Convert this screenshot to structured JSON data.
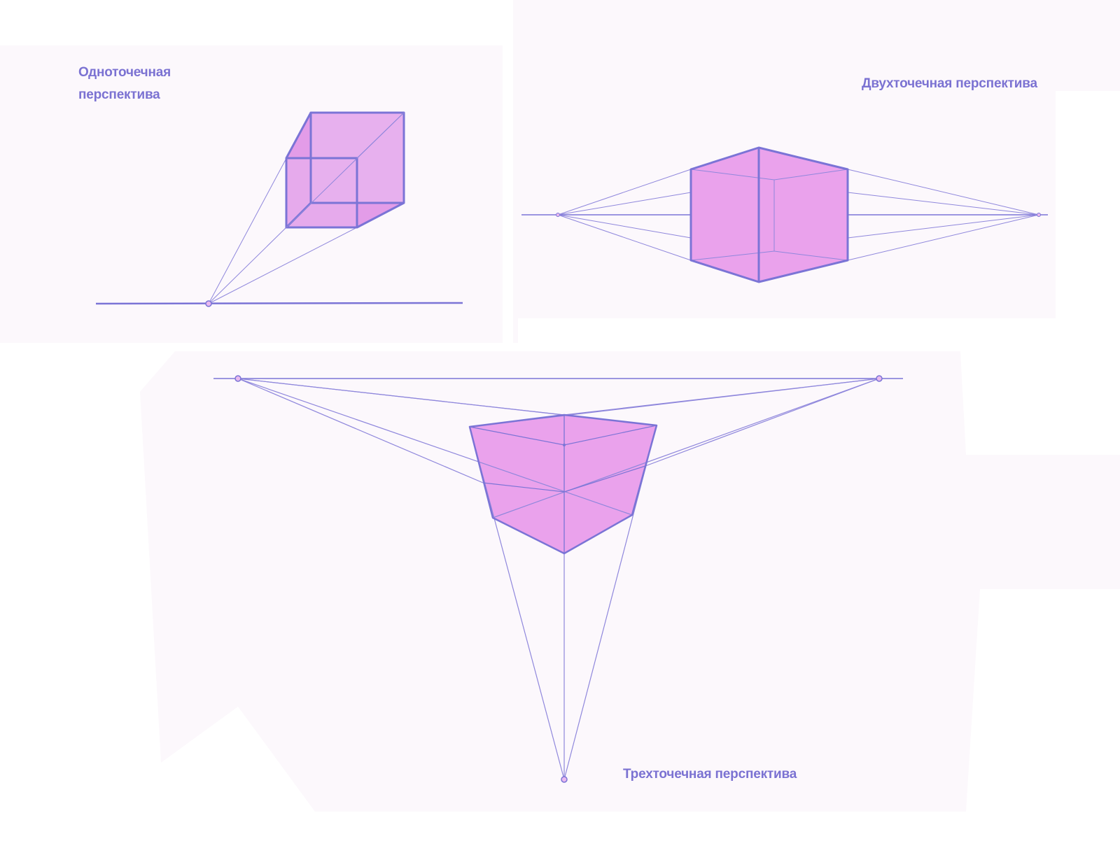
{
  "labels": {
    "one_point": "Одноточечная перспектива",
    "two_point": "Двухточечная перспектива",
    "three_point": "Трехточечная перспектива"
  },
  "colors": {
    "line": "#7b74d6",
    "face_fill": "#eaa2ec",
    "face_fill_alt": "#e7b0ee",
    "panel_bg": "#fcf8fc",
    "text": "#7b72d2",
    "point_fill": "#e9b9ef"
  }
}
